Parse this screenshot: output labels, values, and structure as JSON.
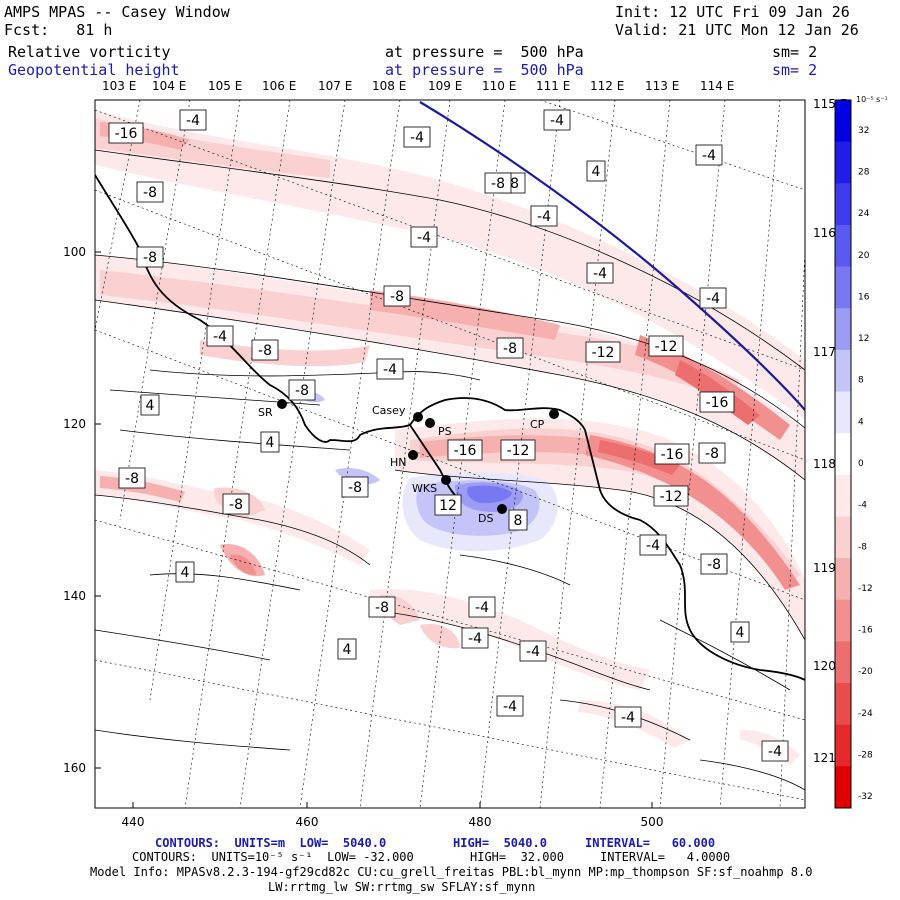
{
  "header": {
    "left1": "AMPS MPAS -- Casey Window",
    "left2": "Fcst:   81 h",
    "init": "Init: 12 UTC Fri 09 Jan 26",
    "valid": "Valid: 21 UTC Mon 12 Jan 26",
    "field1_name": "Relative vorticity",
    "field1_level": "at pressure =  500 hPa",
    "field1_sm": "sm= 2",
    "field2_name": "Geopotential height",
    "field2_level": "at pressure =  500 hPa",
    "field2_sm": "sm= 2"
  },
  "top_lon_labels": [
    "103 E",
    "104 E",
    "105 E",
    "106 E",
    "107 E",
    "108 E",
    "109 E",
    "110 E",
    "111 E",
    "112 E",
    "113 E",
    "114 E"
  ],
  "right_lon_labels": [
    "115 E",
    "116 E",
    "117 E",
    "118 E",
    "119 E",
    "120 E",
    "121 E"
  ],
  "left_axis_labels": [
    "100",
    "120",
    "140",
    "160"
  ],
  "bottom_axis_labels": [
    "440",
    "460",
    "480",
    "500"
  ],
  "colorbar": {
    "unit": "10⁻⁵ s⁻¹",
    "labels": [
      "32",
      "28",
      "24",
      "20",
      "16",
      "12",
      "8",
      "4",
      "0",
      "-4",
      "-8",
      "-12",
      "-16",
      "-20",
      "-24",
      "-28",
      "-32"
    ],
    "colors": [
      "#0000e0",
      "#1e1ee8",
      "#3c3cec",
      "#5a5af0",
      "#7878f2",
      "#9c9cf4",
      "#c4c4f8",
      "#e8e8fc",
      "#ffffff",
      "#fde9e9",
      "#fbd0d0",
      "#f7b0b0",
      "#f29090",
      "#ec6e6e",
      "#e84c4c",
      "#e42a2a",
      "#e00000"
    ]
  },
  "stations": [
    {
      "name": "SR"
    },
    {
      "name": "Casey"
    },
    {
      "name": "PS"
    },
    {
      "name": "HN"
    },
    {
      "name": "CP"
    },
    {
      "name": "WKS"
    },
    {
      "name": "DS"
    }
  ],
  "contour_labels": [
    "-16",
    "-4",
    "-4",
    "-4",
    "-4",
    "4",
    "-8",
    "-8",
    "-4",
    "-8",
    "-4",
    "-4",
    "-8",
    "-4",
    "-8",
    "-4",
    "-8",
    "-12",
    "-12",
    "-4",
    "-16",
    "-8",
    "4",
    "4",
    "-16",
    "-12",
    "-16",
    "-8",
    "-8",
    "-8",
    "-8",
    "12",
    "8",
    "-12",
    "-4",
    "-8",
    "4",
    "-4",
    "-8",
    "-4",
    "4",
    "-4",
    "4",
    "-4",
    "-4",
    "-4",
    "-8"
  ],
  "footer": {
    "line1_a": "CONTOURS:  UNITS=m  LOW=  5040.0",
    "line1_b": "HIGH=  5040.0",
    "line1_c": "INTERVAL=   60.000",
    "line2_a": "CONTOURS:  UNITS=10⁻⁵ s⁻¹  LOW= -32.000",
    "line2_b": "HIGH=  32.000",
    "line2_c": "INTERVAL=   4.0000",
    "line3": "Model Info: MPASv8.2.3-194-gf29cd82c CU:cu_grell_freitas PBL:bl_mynn MP:mp_thompson SF:sf_noahmp 8.0",
    "line4": "LW:rrtmg_lw SW:rrtmg_sw SFLAY:sf_mynn"
  }
}
